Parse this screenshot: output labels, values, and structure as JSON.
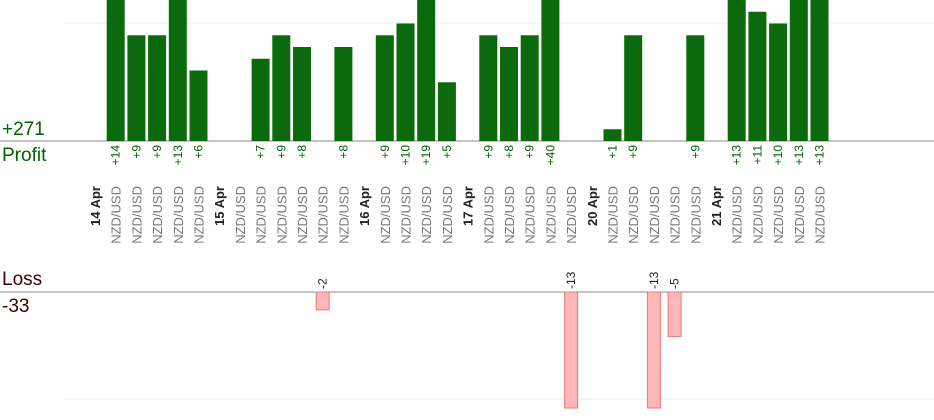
{
  "summary": {
    "profit_total": "+271",
    "profit_label": "Profit",
    "loss_label": "Loss",
    "loss_total": "-33"
  },
  "colors": {
    "profit_bar": "#0b6a0b",
    "profit_text": "#006400",
    "loss_bar": "#ffb6b6",
    "loss_border": "#e07b7b",
    "date_text": "#222222",
    "pair_text": "#777777"
  },
  "chart_data": {
    "type": "bar",
    "profit_ylim": [
      0,
      12
    ],
    "loss_ylim": [
      0,
      13
    ],
    "days": [
      {
        "label": "14 Apr",
        "trades": [
          {
            "pair": "NZD/USD",
            "value": 14
          },
          {
            "pair": "NZD/USD",
            "value": 9
          },
          {
            "pair": "NZD/USD",
            "value": 9
          },
          {
            "pair": "NZD/USD",
            "value": 13
          },
          {
            "pair": "NZD/USD",
            "value": 6
          }
        ]
      },
      {
        "label": "15 Apr",
        "trades": [
          {
            "pair": "NZD/USD",
            "value": null
          },
          {
            "pair": "NZD/USD",
            "value": 7
          },
          {
            "pair": "NZD/USD",
            "value": 9
          },
          {
            "pair": "NZD/USD",
            "value": 8
          },
          {
            "pair": "NZD/USD",
            "value": -2
          },
          {
            "pair": "NZD/USD",
            "value": 8
          }
        ]
      },
      {
        "label": "16 Apr",
        "trades": [
          {
            "pair": "NZD/USD",
            "value": 9
          },
          {
            "pair": "NZD/USD",
            "value": 10
          },
          {
            "pair": "NZD/USD",
            "value": 19
          },
          {
            "pair": "NZD/USD",
            "value": 5
          }
        ]
      },
      {
        "label": "17 Apr",
        "trades": [
          {
            "pair": "NZD/USD",
            "value": 9
          },
          {
            "pair": "NZD/USD",
            "value": 8
          },
          {
            "pair": "NZD/USD",
            "value": 9
          },
          {
            "pair": "NZD/USD",
            "value": 40
          },
          {
            "pair": "NZD/USD",
            "value": -13
          }
        ]
      },
      {
        "label": "20 Apr",
        "trades": [
          {
            "pair": "NZD/USD",
            "value": 1
          },
          {
            "pair": "NZD/USD",
            "value": 9
          },
          {
            "pair": "NZD/USD",
            "value": -13
          },
          {
            "pair": "NZD/USD",
            "value": -5
          },
          {
            "pair": "NZD/USD",
            "value": 9
          }
        ]
      },
      {
        "label": "21 Apr",
        "trades": [
          {
            "pair": "NZD/USD",
            "value": 13
          },
          {
            "pair": "NZD/USD",
            "value": 11
          },
          {
            "pair": "NZD/USD",
            "value": 10
          },
          {
            "pair": "NZD/USD",
            "value": 13
          },
          {
            "pair": "NZD/USD",
            "value": 13
          }
        ]
      }
    ]
  }
}
